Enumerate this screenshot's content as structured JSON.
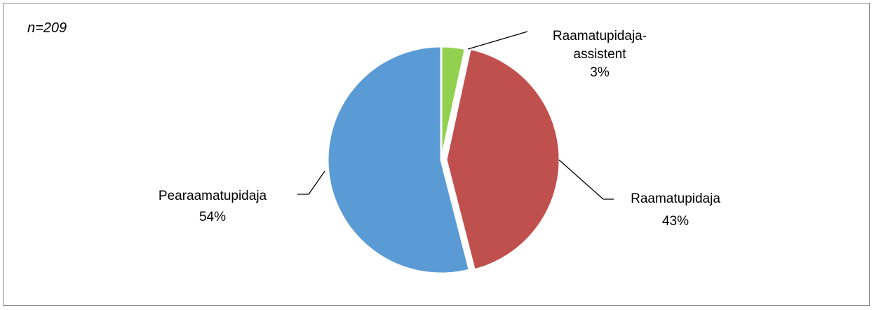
{
  "note": "n=209",
  "chart_data": {
    "type": "pie",
    "title": "",
    "slices": [
      {
        "label": "Raamatupidaja-assistent",
        "label_lines": [
          "Raamatupidaja-",
          "assistent"
        ],
        "percent_label": "3%",
        "value": 3.4,
        "color": "#92d050",
        "exploded": false
      },
      {
        "label": "Raamatupidaja",
        "label_lines": [
          "Raamatupidaja"
        ],
        "percent_label": "43%",
        "value": 42.6,
        "color": "#c0504d",
        "exploded": true
      },
      {
        "label": "Pearaamatupidaja",
        "label_lines": [
          "Pearaamatupidaja"
        ],
        "percent_label": "54%",
        "value": 54.0,
        "color": "#5b9bd5",
        "exploded": false
      }
    ],
    "start_angle_deg": 0,
    "direction": "clockwise",
    "legend": "none"
  }
}
